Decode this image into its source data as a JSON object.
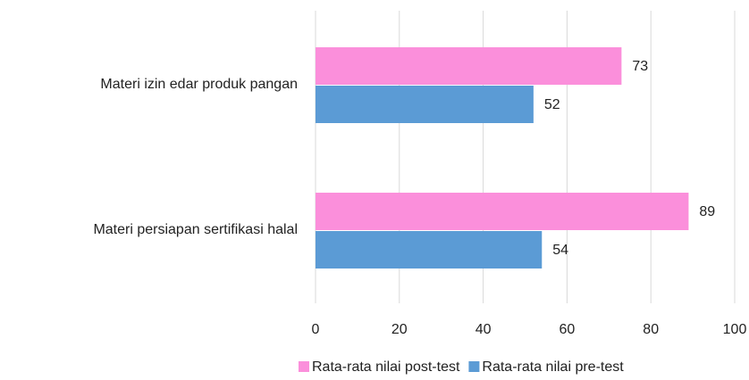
{
  "chart_data": {
    "type": "bar",
    "orientation": "horizontal",
    "categories": [
      "Materi izin edar produk pangan",
      "Materi persiapan sertifikasi halal"
    ],
    "series": [
      {
        "name": "Rata-rata nilai post-test",
        "color": "#fb8fdb",
        "values": [
          73,
          89
        ]
      },
      {
        "name": "Rata-rata nilai pre-test",
        "color": "#5b9bd5",
        "values": [
          52,
          54
        ]
      }
    ],
    "xlim": [
      0,
      100
    ],
    "xticks": [
      0,
      20,
      40,
      60,
      80,
      100
    ],
    "grid": true,
    "legend": "bottom"
  }
}
